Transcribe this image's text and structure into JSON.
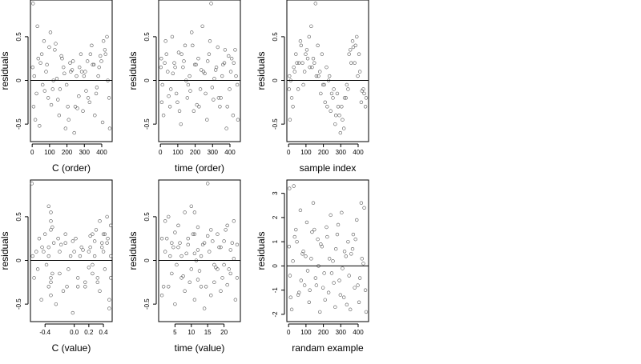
{
  "chart_data": [
    {
      "type": "scatter",
      "xlabel": "C (order)",
      "ylabel": "residuals",
      "xlim": [
        -10,
        460
      ],
      "ylim": [
        -0.7,
        0.92
      ],
      "xticks": [
        0,
        100,
        200,
        300,
        400
      ],
      "yticks": [
        -0.5,
        0.0,
        0.5
      ],
      "hline": 0.0,
      "x": [
        5,
        18,
        30,
        42,
        55,
        68,
        80,
        92,
        105,
        118,
        130,
        142,
        155,
        168,
        180,
        192,
        205,
        218,
        230,
        242,
        255,
        268,
        280,
        292,
        305,
        318,
        330,
        342,
        355,
        368,
        380,
        392,
        405,
        418,
        430,
        442,
        8,
        35,
        60,
        85,
        110,
        135,
        160,
        185,
        210,
        235,
        260,
        285,
        310,
        335,
        360,
        385,
        410,
        435,
        3,
        12,
        25,
        48,
        72,
        98,
        122,
        148,
        172,
        198,
        222,
        248,
        272,
        298,
        322,
        348,
        372,
        398,
        422,
        446
      ],
      "y": [
        0.88,
        -0.45,
        0.62,
        -0.52,
        0.3,
        0.45,
        0.1,
        -0.2,
        0.55,
        -0.1,
        0.35,
        0.02,
        -0.4,
        0.28,
        0.15,
        -0.55,
        -0.3,
        0.2,
        0.12,
        -0.6,
        0.05,
        -0.18,
        0.3,
        -0.35,
        0.1,
        0.22,
        -0.25,
        0.4,
        0.18,
        -0.15,
        0.05,
        0.28,
        -0.48,
        0.35,
        0.5,
        -0.2,
        -0.3,
        0.25,
        -0.05,
        0.18,
        -0.28,
        0.42,
        -0.1,
        0.08,
        -0.45,
        0.22,
        -0.32,
        0.1,
        -0.12,
        0.3,
        -0.4,
        0.15,
        0.45,
        0.0,
        0.15,
        0.05,
        -0.15,
        0.2,
        -0.12,
        0.38,
        0.0,
        -0.22,
        0.25,
        -0.05,
        0.1,
        -0.3,
        0.15,
        0.05,
        -0.2,
        0.18,
        -0.08,
        0.22,
        0.3,
        -0.55
      ]
    },
    {
      "type": "scatter",
      "xlabel": "time (order)",
      "ylabel": "residuals",
      "xlim": [
        -10,
        460
      ],
      "ylim": [
        -0.7,
        0.92
      ],
      "xticks": [
        0,
        100,
        200,
        300,
        400
      ],
      "yticks": [
        -0.5,
        0.0,
        0.5
      ],
      "hline": 0.0,
      "x": [
        5,
        18,
        30,
        42,
        55,
        68,
        80,
        92,
        105,
        118,
        130,
        142,
        155,
        168,
        180,
        192,
        205,
        218,
        230,
        242,
        255,
        268,
        280,
        292,
        305,
        318,
        330,
        342,
        355,
        368,
        380,
        392,
        405,
        418,
        430,
        442,
        8,
        35,
        60,
        85,
        110,
        135,
        160,
        185,
        210,
        235,
        260,
        285,
        310,
        335,
        360,
        385,
        410,
        435,
        3,
        12,
        25,
        48,
        72,
        98,
        122,
        148,
        172,
        198,
        222,
        248,
        272,
        298,
        322,
        348,
        372,
        398,
        422,
        446
      ],
      "y": [
        0.25,
        -0.4,
        0.45,
        0.1,
        -0.3,
        0.5,
        0.2,
        -0.15,
        0.32,
        -0.5,
        0.15,
        0.4,
        -0.2,
        0.05,
        0.55,
        -0.35,
        0.18,
        0.25,
        -0.1,
        0.62,
        0.08,
        -0.45,
        0.3,
        0.88,
        -0.22,
        0.12,
        0.38,
        -0.3,
        0.05,
        0.2,
        -0.55,
        0.28,
        0.1,
        -0.4,
        0.35,
        -0.05,
        -0.25,
        0.3,
        -0.1,
        0.15,
        -0.35,
        0.22,
        -0.05,
        0.4,
        -0.28,
        0.12,
        -0.15,
        0.45,
        0.02,
        -0.2,
        0.18,
        -0.3,
        0.25,
        0.05,
        0.15,
        -0.05,
        0.2,
        -0.18,
        0.08,
        -0.25,
        0.3,
        0.0,
        -0.12,
        0.18,
        -0.3,
        0.1,
        0.22,
        -0.08,
        0.15,
        -0.2,
        0.35,
        -0.1,
        0.2,
        -0.45
      ]
    },
    {
      "type": "scatter",
      "xlabel": "sample index",
      "ylabel": "residuals",
      "xlim": [
        -10,
        460
      ],
      "ylim": [
        -0.7,
        0.92
      ],
      "xticks": [
        0,
        100,
        200,
        300,
        400
      ],
      "yticks": [
        -0.5,
        0.0,
        0.5
      ],
      "hline": 0.0,
      "x": [
        5,
        18,
        30,
        42,
        55,
        68,
        80,
        92,
        105,
        118,
        130,
        142,
        155,
        168,
        180,
        192,
        205,
        218,
        230,
        242,
        255,
        268,
        280,
        292,
        305,
        318,
        330,
        342,
        355,
        368,
        380,
        392,
        405,
        418,
        430,
        442,
        8,
        35,
        60,
        85,
        110,
        135,
        160,
        185,
        210,
        235,
        260,
        285,
        310,
        335,
        360,
        385,
        410,
        435,
        3,
        12,
        25,
        48,
        72,
        98,
        122,
        148,
        172,
        198,
        222,
        248,
        272,
        298,
        322,
        348,
        372,
        398,
        422,
        446
      ],
      "y": [
        0.05,
        -0.2,
        0.15,
        0.3,
        -0.1,
        0.45,
        0.2,
        0.1,
        0.35,
        0.5,
        0.62,
        0.25,
        0.88,
        0.4,
        0.1,
        0.3,
        -0.05,
        0.15,
        0.0,
        -0.35,
        -0.2,
        -0.5,
        -0.15,
        -0.4,
        -0.3,
        -0.55,
        -0.2,
        -0.1,
        0.35,
        0.45,
        0.2,
        0.5,
        0.3,
        -0.25,
        -0.1,
        -0.3,
        -0.45,
        0.1,
        0.2,
        -0.05,
        0.25,
        0.15,
        0.05,
        -0.15,
        -0.25,
        0.05,
        -0.1,
        -0.3,
        -0.45,
        -0.05,
        0.2,
        0.4,
        0.1,
        -0.15,
        -0.1,
        0.0,
        -0.3,
        0.2,
        0.4,
        0.3,
        0.15,
        0.2,
        0.05,
        -0.05,
        -0.3,
        -0.15,
        -0.4,
        -0.6,
        -0.2,
        0.3,
        0.38,
        0.05,
        -0.12,
        -0.2
      ]
    },
    {
      "type": "scatter",
      "xlabel": "C (value)",
      "ylabel": "residuals",
      "xlim": [
        -0.6,
        0.52
      ],
      "ylim": [
        -0.7,
        0.92
      ],
      "xticks": [
        -0.4,
        0.0,
        0.2,
        0.4
      ],
      "xticklabels": [
        "-0.4",
        "0.0",
        "0.2",
        "0.4"
      ],
      "yticks": [
        -0.5,
        0.0,
        0.5
      ],
      "hline": 0.0,
      "x": [
        -0.58,
        -0.52,
        -0.45,
        -0.4,
        -0.35,
        -0.35,
        -0.35,
        -0.32,
        -0.32,
        -0.32,
        -0.32,
        -0.28,
        -0.25,
        -0.22,
        -0.2,
        -0.15,
        -0.12,
        -0.08,
        -0.05,
        -0.02,
        0.02,
        0.05,
        0.1,
        0.15,
        0.2,
        0.22,
        0.25,
        0.28,
        0.3,
        0.32,
        0.35,
        0.38,
        0.4,
        0.42,
        0.45,
        0.48,
        -0.55,
        -0.48,
        -0.42,
        -0.38,
        -0.32,
        -0.3,
        -0.18,
        -0.1,
        -0.02,
        0.08,
        0.15,
        0.22,
        0.25,
        0.25,
        0.35,
        0.4,
        0.45,
        0.5,
        -0.57,
        -0.5,
        -0.44,
        -0.35,
        -0.32,
        -0.3,
        -0.2,
        -0.12,
        0.0,
        0.05,
        0.12,
        0.2,
        0.28,
        0.32,
        0.38,
        0.42,
        0.46,
        0.48,
        0.5,
        0.5
      ],
      "y": [
        0.88,
        0.1,
        -0.45,
        0.3,
        0.62,
        -0.3,
        0.15,
        0.55,
        -0.2,
        0.35,
        -0.4,
        0.2,
        -0.5,
        0.25,
        0.1,
        -0.35,
        0.3,
        -0.1,
        0.05,
        -0.6,
        0.25,
        -0.2,
        0.15,
        -0.3,
        0.1,
        0.28,
        -0.15,
        0.05,
        0.35,
        -0.25,
        0.45,
        0.2,
        0.3,
        -0.1,
        0.5,
        -0.45,
        -0.2,
        0.25,
        0.1,
        -0.05,
        0.45,
        -0.15,
        0.18,
        -0.3,
        0.22,
        0.05,
        -0.25,
        0.15,
        -0.05,
        0.3,
        -0.35,
        0.1,
        0.2,
        -0.2,
        0.05,
        -0.1,
        0.15,
        0.05,
        -0.25,
        0.38,
        -0.15,
        0.2,
        0.1,
        -0.3,
        0.12,
        -0.08,
        0.22,
        -0.2,
        0.15,
        0.3,
        0.25,
        -0.55,
        0.4,
        0.05
      ]
    },
    {
      "type": "scatter",
      "xlabel": "time (value)",
      "ylabel": "residuals",
      "xlim": [
        0,
        25
      ],
      "ylim": [
        -0.7,
        0.92
      ],
      "xticks": [
        5,
        10,
        15,
        20
      ],
      "yticks": [
        -0.5,
        0.0,
        0.5
      ],
      "hline": 0.0,
      "x": [
        1,
        1,
        2,
        2,
        3,
        3,
        4,
        4,
        5,
        5,
        6,
        6,
        7,
        7,
        8,
        8,
        9,
        9,
        10,
        10,
        11,
        11,
        11,
        11,
        12,
        12,
        12,
        13,
        13,
        14,
        14,
        15,
        15,
        16,
        16,
        17,
        17,
        18,
        18,
        19,
        19,
        20,
        20,
        21,
        21,
        22,
        22,
        23,
        23,
        24,
        24,
        1.5,
        2.5,
        3.5,
        4.5,
        5.5,
        6.5,
        7.5,
        8.5,
        9.5,
        10.5,
        11.5,
        12.5,
        13.5,
        14.5,
        15.5,
        16.5,
        17.5,
        18.5,
        19.5,
        20.5,
        21.5,
        22.5,
        23.5
      ],
      "y": [
        0.25,
        -0.4,
        0.45,
        0.1,
        -0.3,
        0.5,
        0.2,
        -0.15,
        0.32,
        -0.5,
        0.15,
        0.4,
        -0.2,
        0.05,
        0.55,
        -0.35,
        0.18,
        0.25,
        -0.1,
        0.62,
        0.08,
        -0.45,
        0.3,
        0.55,
        -0.22,
        0.12,
        0.38,
        -0.3,
        0.05,
        0.2,
        -0.55,
        0.28,
        0.88,
        -0.4,
        0.35,
        -0.05,
        -0.25,
        0.3,
        -0.1,
        0.15,
        -0.35,
        0.22,
        -0.05,
        0.4,
        -0.28,
        0.12,
        -0.15,
        0.45,
        0.02,
        -0.2,
        0.18,
        -0.3,
        0.25,
        0.05,
        0.15,
        -0.05,
        0.2,
        -0.18,
        0.08,
        -0.25,
        0.3,
        0.0,
        -0.12,
        0.18,
        -0.3,
        0.1,
        0.22,
        -0.08,
        0.15,
        -0.2,
        0.35,
        -0.1,
        0.2,
        -0.45
      ]
    },
    {
      "type": "scatter",
      "xlabel": "randam example",
      "ylabel": "residuals",
      "xlim": [
        -10,
        460
      ],
      "ylim": [
        -2.3,
        3.55
      ],
      "xticks": [
        0,
        100,
        200,
        300,
        400
      ],
      "yticks": [
        -2,
        -1,
        0,
        1,
        2,
        3
      ],
      "hline": 0.0,
      "x": [
        5,
        18,
        30,
        42,
        55,
        68,
        80,
        92,
        105,
        118,
        130,
        142,
        155,
        168,
        180,
        192,
        205,
        218,
        230,
        242,
        255,
        268,
        280,
        292,
        305,
        318,
        330,
        342,
        355,
        368,
        380,
        392,
        405,
        418,
        430,
        442,
        8,
        35,
        60,
        85,
        110,
        135,
        160,
        185,
        210,
        235,
        260,
        285,
        310,
        335,
        360,
        385,
        410,
        435,
        3,
        12,
        25,
        48,
        72,
        98,
        122,
        148,
        172,
        198,
        222,
        248,
        272,
        298,
        322,
        348,
        372,
        398,
        422,
        446
      ],
      "y": [
        3.2,
        -1.8,
        3.3,
        1.5,
        -1.2,
        2.3,
        0.5,
        -0.8,
        1.8,
        -1.5,
        0.3,
        2.6,
        -0.5,
        1.1,
        -1.9,
        0.8,
        -0.3,
        1.6,
        -1.1,
        2.1,
        0.2,
        -1.7,
        1.3,
        -0.6,
        2.2,
        -1.3,
        0.4,
        1.0,
        -1.8,
        0.7,
        -0.9,
        1.9,
        -1.5,
        2.6,
        0.1,
        -1.0,
        -0.4,
        1.2,
        -1.1,
        0.6,
        -0.2,
        1.4,
        -0.8,
        0.9,
        -1.4,
        0.3,
        -0.7,
        1.7,
        -0.1,
        -1.6,
        0.5,
        1.1,
        -0.5,
        2.4,
        0.8,
        -1.3,
        0.2,
        1.0,
        -0.6,
        0.4,
        -1.0,
        1.5,
        0.0,
        -0.9,
        1.2,
        -0.3,
        0.7,
        -1.2,
        0.6,
        -0.4,
        1.3,
        -0.8,
        0.3,
        -1.9
      ]
    }
  ]
}
